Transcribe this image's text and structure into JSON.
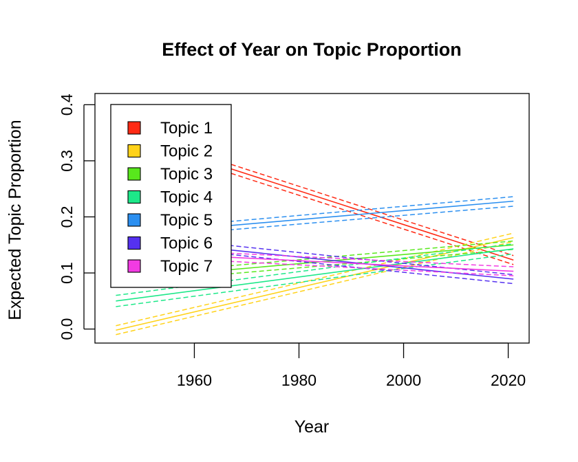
{
  "chart_data": {
    "type": "line",
    "title": "Effect of Year on Topic Proportion",
    "xlabel": "Year",
    "ylabel": "Expected Topic Proportion",
    "xlim": [
      1941,
      2024
    ],
    "ylim": [
      -0.025,
      0.42
    ],
    "x_ticks": [
      1960,
      1980,
      2000,
      2020
    ],
    "x_tick_labels": [
      "1960",
      "1980",
      "2000",
      "2020"
    ],
    "y_ticks": [
      0.0,
      0.1,
      0.2,
      0.3,
      0.4
    ],
    "y_tick_labels": [
      "0.0",
      "0.1",
      "0.2",
      "0.3",
      "0.4"
    ],
    "grid": false,
    "legend_position": "top-left",
    "x": [
      1945,
      2021
    ],
    "series": [
      {
        "name": "Topic 1",
        "color": "#FF2A14",
        "values": [
          0.352,
          0.123
        ],
        "ci_lower": [
          0.344,
          0.115
        ],
        "ci_upper": [
          0.36,
          0.131
        ]
      },
      {
        "name": "Topic 2",
        "color": "#FFD21A",
        "values": [
          -0.002,
          0.163
        ],
        "ci_lower": [
          -0.01,
          0.156
        ],
        "ci_upper": [
          0.006,
          0.171
        ]
      },
      {
        "name": "Topic 3",
        "color": "#58E81C",
        "values": [
          0.088,
          0.15
        ],
        "ci_lower": [
          0.081,
          0.142
        ],
        "ci_upper": [
          0.095,
          0.157
        ]
      },
      {
        "name": "Topic 4",
        "color": "#1DE889",
        "values": [
          0.05,
          0.143
        ],
        "ci_lower": [
          0.04,
          0.134
        ],
        "ci_upper": [
          0.06,
          0.152
        ]
      },
      {
        "name": "Topic 5",
        "color": "#2B8FF0",
        "values": [
          0.167,
          0.228
        ],
        "ci_lower": [
          0.16,
          0.219
        ],
        "ci_upper": [
          0.174,
          0.236
        ]
      },
      {
        "name": "Topic 6",
        "color": "#5531F0",
        "values": [
          0.162,
          0.089
        ],
        "ci_lower": [
          0.154,
          0.081
        ],
        "ci_upper": [
          0.17,
          0.097
        ]
      },
      {
        "name": "Topic 7",
        "color": "#F23BE3",
        "values": [
          0.138,
          0.103
        ],
        "ci_lower": [
          0.131,
          0.095
        ],
        "ci_upper": [
          0.145,
          0.111
        ]
      }
    ]
  }
}
